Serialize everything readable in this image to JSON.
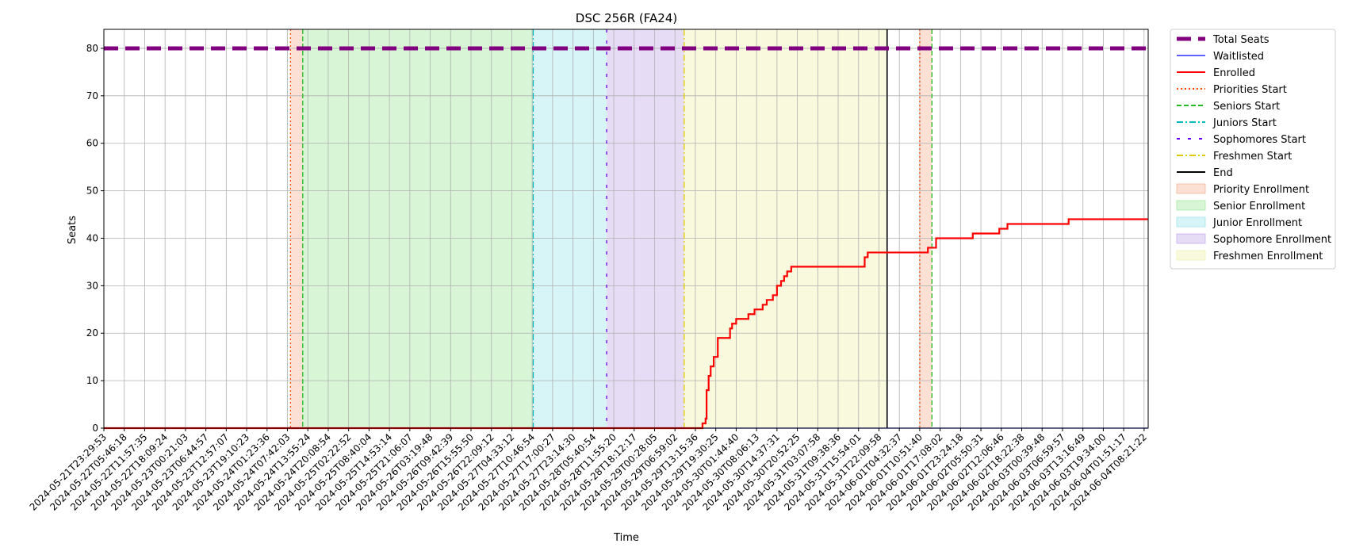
{
  "chart_data": {
    "type": "line",
    "title": "DSC 256R (FA24)",
    "xlabel": "Time",
    "ylabel": "Seats",
    "ylim": [
      0,
      84
    ],
    "yticks": [
      0,
      10,
      20,
      30,
      40,
      50,
      60,
      70,
      80
    ],
    "grid": true,
    "legend_placement": "outside-right",
    "x_tick_labels": [
      "2024-05-21T23:29:53",
      "2024-05-22T05:46:18",
      "2024-05-22T11:57:35",
      "2024-05-22T18:09:24",
      "2024-05-23T00:21:03",
      "2024-05-23T06:44:57",
      "2024-05-23T12:57:07",
      "2024-05-23T19:10:23",
      "2024-05-24T01:23:36",
      "2024-05-24T07:42:03",
      "2024-05-24T13:55:24",
      "2024-05-24T20:08:54",
      "2024-05-25T02:22:52",
      "2024-05-25T08:40:04",
      "2024-05-25T14:53:14",
      "2024-05-25T21:06:07",
      "2024-05-26T03:19:48",
      "2024-05-26T09:42:39",
      "2024-05-26T15:55:50",
      "2024-05-26T22:09:12",
      "2024-05-27T04:33:12",
      "2024-05-27T10:46:54",
      "2024-05-27T17:00:27",
      "2024-05-27T23:14:30",
      "2024-05-28T05:40:54",
      "2024-05-28T11:55:20",
      "2024-05-28T18:12:17",
      "2024-05-29T00:28:05",
      "2024-05-29T06:59:02",
      "2024-05-29T13:15:36",
      "2024-05-29T19:30:25",
      "2024-05-30T01:44:40",
      "2024-05-30T08:06:13",
      "2024-05-30T14:37:31",
      "2024-05-30T20:52:25",
      "2024-05-31T03:07:58",
      "2024-05-31T09:38:36",
      "2024-05-31T15:54:01",
      "2024-05-31T22:09:58",
      "2024-06-01T04:32:37",
      "2024-06-01T10:51:40",
      "2024-06-01T17:08:02",
      "2024-06-01T23:24:18",
      "2024-06-02T05:50:31",
      "2024-06-02T12:06:46",
      "2024-06-02T18:22:38",
      "2024-06-03T00:39:48",
      "2024-06-03T06:59:57",
      "2024-06-03T13:16:49",
      "2024-06-03T19:34:00",
      "2024-06-04T01:51:17",
      "2024-06-04T08:21:22"
    ],
    "xlim": [
      0,
      51.2
    ],
    "series": [
      {
        "name": "Total Seats",
        "color": "#800080",
        "style": "dashed-thick",
        "points": [
          [
            0,
            80
          ],
          [
            51.2,
            80
          ]
        ]
      },
      {
        "name": "Waitlisted",
        "color": "#0000ff",
        "style": "solid-thin",
        "points": [
          [
            0,
            0
          ],
          [
            51.2,
            0
          ]
        ]
      },
      {
        "name": "Enrolled",
        "color": "#ff0000",
        "style": "solid",
        "points": [
          [
            0,
            0
          ],
          [
            29.3,
            0
          ],
          [
            29.35,
            1
          ],
          [
            29.5,
            2
          ],
          [
            29.55,
            8
          ],
          [
            29.65,
            11
          ],
          [
            29.75,
            13
          ],
          [
            29.9,
            15
          ],
          [
            30.1,
            19
          ],
          [
            30.6,
            19
          ],
          [
            30.7,
            21
          ],
          [
            30.8,
            22
          ],
          [
            31.0,
            23
          ],
          [
            31.5,
            23
          ],
          [
            31.6,
            24
          ],
          [
            31.9,
            25
          ],
          [
            32.3,
            26
          ],
          [
            32.5,
            27
          ],
          [
            32.8,
            28
          ],
          [
            33.0,
            30
          ],
          [
            33.2,
            31
          ],
          [
            33.35,
            32
          ],
          [
            33.5,
            33
          ],
          [
            33.7,
            34
          ],
          [
            37.2,
            34
          ],
          [
            37.3,
            36
          ],
          [
            37.45,
            37
          ],
          [
            40.3,
            37
          ],
          [
            40.4,
            38
          ],
          [
            40.7,
            38
          ],
          [
            40.8,
            40
          ],
          [
            42.5,
            40
          ],
          [
            42.6,
            41
          ],
          [
            43.8,
            41
          ],
          [
            43.9,
            42
          ],
          [
            44.2,
            42
          ],
          [
            44.3,
            43
          ],
          [
            47.2,
            43
          ],
          [
            47.3,
            44
          ],
          [
            51.2,
            44
          ]
        ]
      }
    ],
    "markers": [
      {
        "name": "Priorities Start",
        "x": 9.15,
        "color": "#ff4500",
        "style": "dotted"
      },
      {
        "name": "Seniors Start",
        "x": 9.75,
        "color": "#22bb22",
        "style": "dashed"
      },
      {
        "name": "Juniors Start",
        "x": 21.05,
        "color": "#00bbbb",
        "style": "dashdot"
      },
      {
        "name": "Sophomores Start",
        "x": 24.65,
        "color": "#6600ee",
        "style": "loosedash"
      },
      {
        "name": "Freshmen Start",
        "x": 28.45,
        "color": "#ddcc00",
        "style": "dashdot"
      },
      {
        "name": "End",
        "x": 38.4,
        "color": "#000000",
        "style": "solid"
      },
      {
        "name": "Priorities Start",
        "x": 40.0,
        "color": "#ff4500",
        "style": "dotted"
      },
      {
        "name": "Seniors Start",
        "x": 40.6,
        "color": "#22bb22",
        "style": "dashed"
      }
    ],
    "bands": [
      {
        "name": "Priority Enrollment",
        "x0": 9.15,
        "x1": 9.75,
        "color": "#f4a582"
      },
      {
        "name": "Senior Enrollment",
        "x0": 9.75,
        "x1": 21.05,
        "color": "#90e38a"
      },
      {
        "name": "Junior Enrollment",
        "x0": 21.05,
        "x1": 24.65,
        "color": "#8be0e6"
      },
      {
        "name": "Sophomore Enrollment",
        "x0": 24.65,
        "x1": 28.45,
        "color": "#b89ae6"
      },
      {
        "name": "Freshmen Enrollment",
        "x0": 28.45,
        "x1": 38.4,
        "color": "#eeeea0"
      },
      {
        "name": "Priority Enrollment",
        "x0": 40.0,
        "x1": 40.6,
        "color": "#f4a582"
      }
    ],
    "legend": [
      {
        "label": "Total Seats",
        "kind": "line",
        "color": "#800080",
        "style": "dashed-thick"
      },
      {
        "label": "Waitlisted",
        "kind": "line",
        "color": "#0000ff",
        "style": "solid-thin"
      },
      {
        "label": "Enrolled",
        "kind": "line",
        "color": "#ff0000",
        "style": "solid"
      },
      {
        "label": "Priorities Start",
        "kind": "line",
        "color": "#ff4500",
        "style": "dotted"
      },
      {
        "label": "Seniors Start",
        "kind": "line",
        "color": "#22bb22",
        "style": "dashed"
      },
      {
        "label": "Juniors Start",
        "kind": "line",
        "color": "#00bbbb",
        "style": "dashdot"
      },
      {
        "label": "Sophomores Start",
        "kind": "line",
        "color": "#6600ee",
        "style": "loosedash"
      },
      {
        "label": "Freshmen Start",
        "kind": "line",
        "color": "#ddcc00",
        "style": "dashdot"
      },
      {
        "label": "End",
        "kind": "line",
        "color": "#000000",
        "style": "solid"
      },
      {
        "label": "Priority Enrollment",
        "kind": "patch",
        "color": "#f4a582"
      },
      {
        "label": "Senior Enrollment",
        "kind": "patch",
        "color": "#90e38a"
      },
      {
        "label": "Junior Enrollment",
        "kind": "patch",
        "color": "#8be0e6"
      },
      {
        "label": "Sophomore Enrollment",
        "kind": "patch",
        "color": "#b89ae6"
      },
      {
        "label": "Freshmen Enrollment",
        "kind": "patch",
        "color": "#eeeea0"
      }
    ]
  }
}
